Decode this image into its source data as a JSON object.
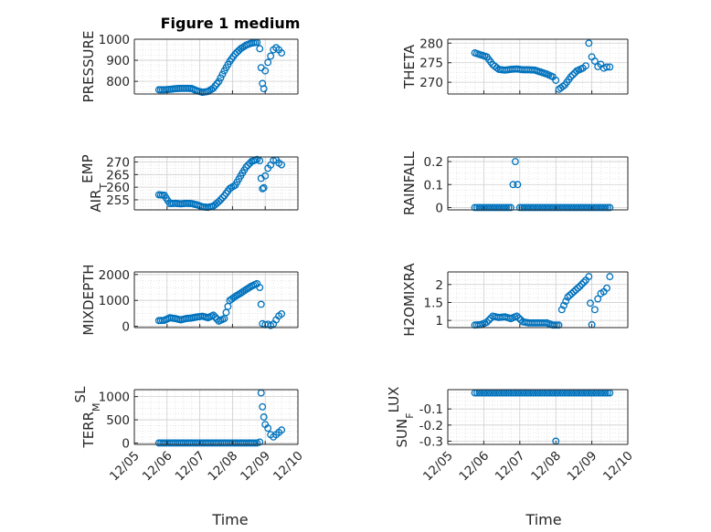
{
  "figure": {
    "title": "Figure 1 medium",
    "xlabel": "Time",
    "marker_color": "#0072BD"
  },
  "chart_data": [
    {
      "type": "scatter",
      "title": "Figure 1 medium",
      "ylabel": "PRESSURE",
      "ylabel_sub": "",
      "ylim": [
        740,
        1000
      ],
      "yticks": [
        800,
        900,
        1000
      ],
      "yticklabels": [
        "800",
        "900",
        "1000"
      ],
      "xlim": [
        "12/05",
        "12/10"
      ],
      "show_xticklabels": false,
      "x": [
        "12/05 18:00",
        "12/05 22:00",
        "12/06 02:00",
        "12/06 06:00",
        "12/06 10:00",
        "12/06 14:00",
        "12/06 18:00",
        "12/06 22:00",
        "12/07 02:00",
        "12/07 06:00",
        "12/07 10:00",
        "12/07 14:00",
        "12/07 18:00",
        "12/07 22:00",
        "12/08 02:00",
        "12/08 06:00",
        "12/08 10:00",
        "12/08 14:00",
        "12/08 18:00",
        "12/08 20:00",
        "12/08 21:00",
        "12/08 22:00",
        "12/08 23:00",
        "12/09 00:00",
        "12/09 02:00",
        "12/09 04:00",
        "12/09 06:00",
        "12/09 08:00",
        "12/09 10:00",
        "12/09 12:00"
      ],
      "y": [
        760,
        760,
        762,
        765,
        767,
        767,
        766,
        755,
        748,
        752,
        768,
        800,
        850,
        895,
        930,
        955,
        972,
        982,
        985,
        955,
        865,
        790,
        765,
        850,
        890,
        920,
        950,
        960,
        950,
        935
      ]
    },
    {
      "type": "scatter",
      "title": "",
      "ylabel": "THETA",
      "ylabel_sub": "",
      "ylim": [
        267,
        281
      ],
      "yticks": [
        270,
        275,
        280
      ],
      "yticklabels": [
        "270",
        "275",
        "280"
      ],
      "xlim": [
        "12/05",
        "12/10"
      ],
      "show_xticklabels": false,
      "x": [
        "12/05 18:00",
        "12/05 22:00",
        "12/06 02:00",
        "12/06 06:00",
        "12/06 10:00",
        "12/06 14:00",
        "12/06 18:00",
        "12/06 22:00",
        "12/07 02:00",
        "12/07 06:00",
        "12/07 10:00",
        "12/07 14:00",
        "12/07 18:00",
        "12/07 22:00",
        "12/08 00:00",
        "12/08 02:00",
        "12/08 06:00",
        "12/08 10:00",
        "12/08 14:00",
        "12/08 18:00",
        "12/08 20:00",
        "12/08 22:00",
        "12/09 00:00",
        "12/09 02:00",
        "12/09 04:00",
        "12/09 06:00",
        "12/09 08:00",
        "12/09 10:00",
        "12/09 12:00"
      ],
      "y": [
        277.5,
        277,
        276.5,
        274.5,
        273.3,
        273.1,
        273.3,
        273.4,
        273.2,
        273.2,
        273.1,
        272.6,
        272.1,
        271.4,
        270.5,
        268.2,
        269.3,
        271.4,
        272.9,
        273.6,
        274.2,
        280.0,
        276.5,
        275.4,
        274.0,
        274.6,
        273.6,
        273.9,
        273.9
      ]
    },
    {
      "type": "scatter",
      "title": "",
      "ylabel": "AIR",
      "ylabel_sub": "T",
      "ylabel_rest": "EMP",
      "ylim": [
        251,
        272
      ],
      "yticks": [
        255,
        260,
        265,
        270
      ],
      "yticklabels": [
        "255",
        "260",
        "265",
        "270"
      ],
      "xlim": [
        "12/05",
        "12/10"
      ],
      "show_xticklabels": false,
      "x": [
        "12/05 18:00",
        "12/05 22:00",
        "12/06 02:00",
        "12/06 06:00",
        "12/06 10:00",
        "12/06 14:00",
        "12/06 18:00",
        "12/06 22:00",
        "12/07 02:00",
        "12/07 06:00",
        "12/07 10:00",
        "12/07 14:00",
        "12/07 18:00",
        "12/07 22:00",
        "12/08 02:00",
        "12/08 06:00",
        "12/08 10:00",
        "12/08 14:00",
        "12/08 18:00",
        "12/08 20:00",
        "12/08 21:00",
        "12/08 22:00",
        "12/08 23:00",
        "12/09 00:00",
        "12/09 02:00",
        "12/09 04:00",
        "12/09 06:00",
        "12/09 08:00",
        "12/09 10:00",
        "12/09 12:00"
      ],
      "y": [
        257,
        256.8,
        253.5,
        253.6,
        253.4,
        253.6,
        253.5,
        253.0,
        252.2,
        252.0,
        252.5,
        254.3,
        256.6,
        259.5,
        260.8,
        264.5,
        268.0,
        270.2,
        271.0,
        270.5,
        263.5,
        259.4,
        259.8,
        264.5,
        267.5,
        268.8,
        270.6,
        270.8,
        269.6,
        268.9
      ]
    },
    {
      "type": "scatter",
      "title": "",
      "ylabel": "RAINFALL",
      "ylabel_sub": "",
      "ylim": [
        -0.01,
        0.22
      ],
      "yticks": [
        0,
        0.1,
        0.2
      ],
      "yticklabels": [
        "0",
        "0.1",
        "0.2"
      ],
      "xlim": [
        "12/05",
        "12/10"
      ],
      "show_xticklabels": false,
      "x": [
        "12/05 18:00",
        "12/06 00:00",
        "12/06 06:00",
        "12/06 12:00",
        "12/06 18:00",
        "12/06 21:00",
        "12/07 00:00",
        "12/07 06:00",
        "12/07 12:00",
        "12/07 18:00",
        "12/08 00:00",
        "12/08 06:00",
        "12/08 12:00",
        "12/08 18:00",
        "12/09 00:00",
        "12/09 06:00",
        "12/09 12:00"
      ],
      "y": [
        0,
        0,
        0,
        0,
        0,
        0.2,
        0,
        0,
        0,
        0,
        0,
        0,
        0,
        0,
        0,
        0,
        0
      ]
    },
    {
      "type": "scatter",
      "title": "",
      "ylabel": "MIXDEPTH",
      "ylabel_sub": "",
      "ylim": [
        -50,
        2100
      ],
      "yticks": [
        0,
        1000,
        2000
      ],
      "yticklabels": [
        "0",
        "1000",
        "2000"
      ],
      "xlim": [
        "12/05",
        "12/10"
      ],
      "show_xticklabels": false,
      "x": [
        "12/05 18:00",
        "12/05 22:00",
        "12/06 02:00",
        "12/06 06:00",
        "12/06 10:00",
        "12/06 14:00",
        "12/06 18:00",
        "12/06 22:00",
        "12/07 02:00",
        "12/07 06:00",
        "12/07 10:00",
        "12/07 14:00",
        "12/07 18:00",
        "12/07 22:00",
        "12/08 02:00",
        "12/08 06:00",
        "12/08 10:00",
        "12/08 14:00",
        "12/08 18:00",
        "12/08 20:00",
        "12/08 21:00",
        "12/08 22:00",
        "12/09 00:00",
        "12/09 02:00",
        "12/09 04:00",
        "12/09 06:00",
        "12/09 08:00",
        "12/09 10:00",
        "12/09 12:00"
      ],
      "y": [
        220,
        230,
        330,
        300,
        250,
        300,
        320,
        360,
        390,
        330,
        430,
        200,
        300,
        1000,
        1150,
        1280,
        1420,
        1550,
        1650,
        1500,
        850,
        100,
        60,
        80,
        30,
        90,
        250,
        400,
        480
      ]
    },
    {
      "type": "scatter",
      "title": "",
      "ylabel": "H2OMIXRA",
      "ylabel_sub": "",
      "ylim": [
        0.8,
        2.35
      ],
      "yticks": [
        1,
        1.5,
        2
      ],
      "yticklabels": [
        "1",
        "1.5",
        "2"
      ],
      "xlim": [
        "12/05",
        "12/10"
      ],
      "show_xticklabels": false,
      "x": [
        "12/05 18:00",
        "12/05 22:00",
        "12/06 02:00",
        "12/06 06:00",
        "12/06 10:00",
        "12/06 14:00",
        "12/06 18:00",
        "12/06 22:00",
        "12/07 02:00",
        "12/07 06:00",
        "12/07 10:00",
        "12/07 14:00",
        "12/07 18:00",
        "12/07 22:00",
        "12/08 02:00",
        "12/08 04:00",
        "12/08 08:00",
        "12/08 12:00",
        "12/08 16:00",
        "12/08 20:00",
        "12/08 22:00",
        "12/08 23:00",
        "12/09 00:00",
        "12/09 02:00",
        "12/09 04:00",
        "12/09 06:00",
        "12/09 08:00",
        "12/09 10:00",
        "12/09 12:00"
      ],
      "y": [
        0.87,
        0.88,
        0.95,
        1.12,
        1.08,
        1.1,
        1.05,
        1.12,
        0.96,
        0.93,
        0.93,
        0.93,
        0.93,
        0.87,
        0.87,
        1.3,
        1.65,
        1.8,
        1.95,
        2.12,
        2.22,
        1.48,
        0.88,
        1.3,
        1.6,
        1.75,
        1.8,
        1.9,
        2.22
      ]
    },
    {
      "type": "scatter",
      "title": "",
      "ylabel": "TERR",
      "ylabel_sub": "M",
      "ylabel_rest": "SL",
      "ylim": [
        -30,
        1150
      ],
      "yticks": [
        0,
        500,
        1000
      ],
      "yticklabels": [
        "0",
        "500",
        "1000"
      ],
      "xlim": [
        "12/05",
        "12/10"
      ],
      "show_xticklabels": true,
      "xticks": [
        "12/05",
        "12/06",
        "12/07",
        "12/08",
        "12/09",
        "12/10"
      ],
      "x": [
        "12/05 18:00",
        "12/06 00:00",
        "12/06 06:00",
        "12/06 12:00",
        "12/06 18:00",
        "12/07 00:00",
        "12/07 06:00",
        "12/07 12:00",
        "12/07 18:00",
        "12/08 00:00",
        "12/08 06:00",
        "12/08 12:00",
        "12/08 18:00",
        "12/08 20:00",
        "12/08 21:00",
        "12/08 22:00",
        "12/08 23:00",
        "12/09 00:00",
        "12/09 02:00",
        "12/09 04:00",
        "12/09 06:00",
        "12/09 08:00",
        "12/09 10:00",
        "12/09 12:00"
      ],
      "y": [
        0,
        0,
        0,
        0,
        0,
        0,
        0,
        0,
        0,
        0,
        0,
        0,
        0,
        20,
        1080,
        780,
        560,
        400,
        320,
        180,
        130,
        180,
        230,
        280
      ]
    },
    {
      "type": "scatter",
      "title": "",
      "ylabel": "SUN",
      "ylabel_sub": "F",
      "ylabel_rest": "LUX",
      "ylim": [
        -0.32,
        0.02
      ],
      "yticks": [
        -0.3,
        -0.2,
        -0.1
      ],
      "yticklabels": [
        "-0.3",
        "-0.2",
        "-0.1"
      ],
      "xlim": [
        "12/05",
        "12/10"
      ],
      "show_xticklabels": true,
      "xticks": [
        "12/05",
        "12/06",
        "12/07",
        "12/08",
        "12/09",
        "12/10"
      ],
      "x": [
        "12/05 18:00",
        "12/06 00:00",
        "12/06 06:00",
        "12/06 12:00",
        "12/06 18:00",
        "12/07 00:00",
        "12/07 06:00",
        "12/07 12:00",
        "12/07 18:00",
        "12/08 00:00",
        "12/08 06:00",
        "12/08 12:00",
        "12/08 18:00",
        "12/09 00:00",
        "12/09 06:00",
        "12/09 12:00",
        "12/08 00:00"
      ],
      "y": [
        0,
        0,
        0,
        0,
        0,
        0,
        0,
        0,
        0,
        0,
        0,
        0,
        0,
        0,
        0,
        0,
        -0.3
      ]
    }
  ]
}
